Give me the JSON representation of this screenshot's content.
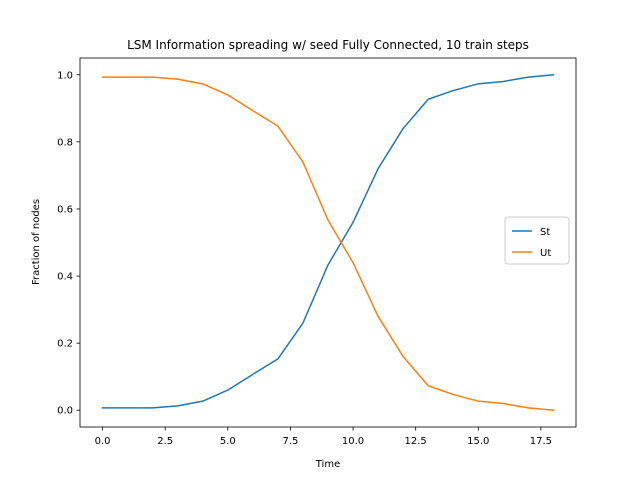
{
  "chart_data": {
    "type": "line",
    "title": "LSM Information spreading w/ seed Fully Connected, 10 train steps",
    "xlabel": "Time",
    "ylabel": "Fraction of nodes",
    "xlim": [
      -0.9,
      18.9
    ],
    "ylim": [
      -0.05,
      1.05
    ],
    "xticks": [
      0.0,
      2.5,
      5.0,
      7.5,
      10.0,
      12.5,
      15.0,
      17.5
    ],
    "xtick_labels": [
      "0.0",
      "2.5",
      "5.0",
      "7.5",
      "10.0",
      "12.5",
      "15.0",
      "17.5"
    ],
    "yticks": [
      0.0,
      0.2,
      0.4,
      0.6,
      0.8,
      1.0
    ],
    "ytick_labels": [
      "0.0",
      "0.2",
      "0.4",
      "0.6",
      "0.8",
      "1.0"
    ],
    "grid": false,
    "legend_position": "center-right",
    "x": [
      0,
      1,
      2,
      3,
      4,
      5,
      6,
      7,
      8,
      9,
      10,
      11,
      12,
      13,
      14,
      15,
      16,
      17,
      18
    ],
    "series": [
      {
        "name": "St",
        "color": "#1f77b4",
        "values": [
          0.007,
          0.007,
          0.007,
          0.013,
          0.027,
          0.06,
          0.107,
          0.153,
          0.26,
          0.433,
          0.56,
          0.72,
          0.84,
          0.927,
          0.953,
          0.973,
          0.98,
          0.993,
          1.0
        ]
      },
      {
        "name": "Ut",
        "color": "#ff7f0e",
        "values": [
          0.993,
          0.993,
          0.993,
          0.987,
          0.973,
          0.94,
          0.893,
          0.847,
          0.74,
          0.567,
          0.44,
          0.28,
          0.16,
          0.073,
          0.047,
          0.027,
          0.02,
          0.007,
          0.0
        ]
      }
    ]
  }
}
